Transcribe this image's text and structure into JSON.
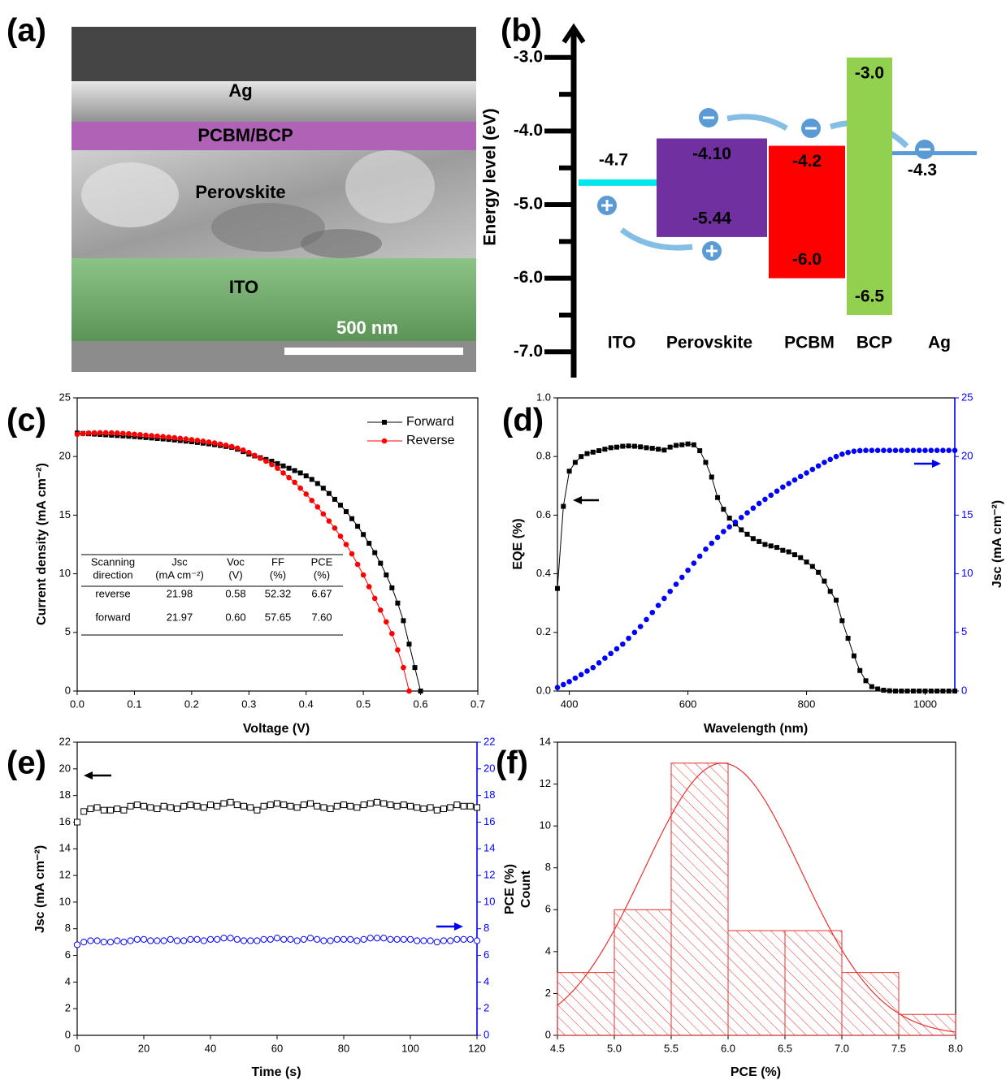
{
  "panel_labels": [
    "(a)",
    "(b)",
    "(c)",
    "(d)",
    "(e)",
    "(f)"
  ],
  "sem": {
    "layers": [
      "Ag",
      "PCBM/BCP",
      "Perovskite",
      "ITO"
    ],
    "scale_bar": "500 nm"
  },
  "chart_data": [
    {
      "type": "energy",
      "ylabel": "Energy level (eV)",
      "ylim": [
        -7.35,
        -2.55
      ],
      "yticks": [
        {
          "value": -3,
          "label": "-3.0"
        },
        {
          "value": -4,
          "label": "-4.0"
        },
        {
          "value": -5,
          "label": "-5.0"
        },
        {
          "value": -6,
          "label": "-6.0"
        },
        {
          "value": -7,
          "label": "-7.0"
        }
      ],
      "minor_yticks": [
        -3.5,
        -4.5,
        -5.5,
        -6.5
      ],
      "bands": [
        {
          "name": "ITO",
          "color": "#00e5ee",
          "values": [
            -4.7
          ],
          "value_labels": [
            "-4.7"
          ]
        },
        {
          "name": "Perovskite",
          "color": "#7030a0",
          "values": [
            -4.1,
            -5.44
          ],
          "value_labels": [
            "-4.10",
            "-5.44"
          ]
        },
        {
          "name": "PCBM",
          "color": "#ff0000",
          "values": [
            -4.2,
            -6.0
          ],
          "value_labels": [
            "-4.2",
            "-6.0"
          ]
        },
        {
          "name": "BCP",
          "color": "#92d050",
          "values": [
            -3.0,
            -6.5
          ],
          "value_labels": [
            "-3.0",
            "-6.5"
          ]
        },
        {
          "name": "Ag",
          "color": "#5b9bd5",
          "values": [
            -4.3
          ],
          "value_labels": [
            "-4.3"
          ]
        }
      ]
    },
    {
      "type": "line",
      "xlabel": "Voltage (V)",
      "ylabel": "Current density (mA cm⁻²)",
      "xlim": [
        0,
        0.7
      ],
      "xticks": [
        {
          "value": 0,
          "label": "0.0"
        },
        0.1,
        0.2,
        0.3,
        0.4,
        0.5,
        0.6,
        0.7
      ],
      "ylim": [
        0,
        25
      ],
      "yticks": [
        0,
        5,
        10,
        15,
        20,
        25
      ],
      "legend": "upper right",
      "series": [
        {
          "name": "Forward",
          "color": "#000000",
          "marker": "square",
          "x": [
            0,
            0.01,
            0.02,
            0.03,
            0.04,
            0.05,
            0.06,
            0.07,
            0.08,
            0.09,
            0.1,
            0.11,
            0.12,
            0.13,
            0.14,
            0.15,
            0.16,
            0.17,
            0.18,
            0.19,
            0.2,
            0.21,
            0.22,
            0.23,
            0.24,
            0.25,
            0.26,
            0.27,
            0.28,
            0.29,
            0.3,
            0.31,
            0.32,
            0.33,
            0.34,
            0.35,
            0.36,
            0.37,
            0.38,
            0.39,
            0.4,
            0.41,
            0.42,
            0.43,
            0.44,
            0.45,
            0.46,
            0.47,
            0.48,
            0.49,
            0.5,
            0.51,
            0.52,
            0.53,
            0.54,
            0.55,
            0.56,
            0.57,
            0.58,
            0.59,
            0.6
          ],
          "values": [
            22.0,
            21.97,
            21.94,
            21.91,
            21.88,
            21.85,
            21.82,
            21.79,
            21.76,
            21.73,
            21.7,
            21.66,
            21.62,
            21.58,
            21.54,
            21.5,
            21.46,
            21.41,
            21.36,
            21.31,
            21.26,
            21.2,
            21.14,
            21.08,
            21.01,
            20.94,
            20.86,
            20.78,
            20.62,
            20.42,
            20.2,
            20.05,
            19.9,
            19.75,
            19.6,
            19.4,
            19.2,
            19.0,
            18.8,
            18.6,
            18.35,
            18.05,
            17.7,
            17.3,
            16.85,
            16.35,
            15.85,
            15.3,
            14.7,
            14.05,
            13.35,
            12.6,
            11.8,
            10.9,
            9.9,
            8.8,
            7.5,
            6.0,
            4.0,
            2.0,
            0.0
          ]
        },
        {
          "name": "Reverse",
          "color": "#ff0000",
          "marker": "circle",
          "x": [
            0,
            0.01,
            0.02,
            0.03,
            0.04,
            0.05,
            0.06,
            0.07,
            0.08,
            0.09,
            0.1,
            0.11,
            0.12,
            0.13,
            0.14,
            0.15,
            0.16,
            0.17,
            0.18,
            0.19,
            0.2,
            0.21,
            0.22,
            0.23,
            0.24,
            0.25,
            0.26,
            0.27,
            0.28,
            0.29,
            0.3,
            0.31,
            0.32,
            0.33,
            0.34,
            0.35,
            0.36,
            0.37,
            0.38,
            0.39,
            0.4,
            0.41,
            0.42,
            0.43,
            0.44,
            0.45,
            0.46,
            0.47,
            0.48,
            0.49,
            0.5,
            0.51,
            0.52,
            0.53,
            0.54,
            0.55,
            0.56,
            0.57,
            0.58
          ],
          "values": [
            21.9,
            21.95,
            22.0,
            22.02,
            22.03,
            22.03,
            22.02,
            22.0,
            21.97,
            21.94,
            21.9,
            21.86,
            21.82,
            21.78,
            21.74,
            21.7,
            21.65,
            21.6,
            21.55,
            21.5,
            21.44,
            21.38,
            21.31,
            21.23,
            21.15,
            21.06,
            20.96,
            20.85,
            20.72,
            20.55,
            20.35,
            20.1,
            19.85,
            19.6,
            19.32,
            19.0,
            18.6,
            18.2,
            17.8,
            17.3,
            16.8,
            16.25,
            15.7,
            15.1,
            14.5,
            13.9,
            13.2,
            12.5,
            11.7,
            10.8,
            9.9,
            8.9,
            7.9,
            6.9,
            5.9,
            4.9,
            3.5,
            2.0,
            0.0
          ]
        }
      ],
      "table": {
        "header": [
          [
            "Scanning",
            "direction"
          ],
          [
            "Jsc",
            "(mA cm⁻²)"
          ],
          [
            "Voc",
            "(V)"
          ],
          [
            "FF",
            "(%)"
          ],
          [
            "PCE",
            "(%)"
          ]
        ],
        "rows": [
          [
            "reverse",
            "21.98",
            "0.58",
            "52.32",
            "6.67"
          ],
          [
            "forward",
            "21.97",
            "0.60",
            "57.65",
            "7.60"
          ]
        ]
      }
    },
    {
      "type": "dual",
      "xlabel": "Wavelength (nm)",
      "ylabel": "EQE (%)",
      "y2label": "Jsc (mA cm⁻²)",
      "xlim": [
        380,
        1050
      ],
      "xticks": [
        400,
        600,
        800,
        1000
      ],
      "ylim": [
        0,
        1
      ],
      "yticks": [
        {
          "value": 0,
          "label": "0.0"
        },
        0.2,
        0.4,
        0.6,
        0.8,
        {
          "value": 1,
          "label": "1.0"
        }
      ],
      "y2lim": [
        0,
        25
      ],
      "y2ticks": [
        0,
        5,
        10,
        15,
        20,
        25
      ],
      "x": [
        380,
        390,
        400,
        410,
        420,
        430,
        440,
        450,
        460,
        470,
        480,
        490,
        500,
        510,
        520,
        530,
        540,
        550,
        560,
        570,
        580,
        590,
        600,
        610,
        620,
        630,
        640,
        650,
        660,
        670,
        680,
        690,
        700,
        710,
        720,
        730,
        740,
        750,
        760,
        770,
        780,
        790,
        800,
        810,
        820,
        830,
        840,
        850,
        860,
        870,
        880,
        890,
        900,
        910,
        920,
        930,
        940,
        950,
        960,
        970,
        980,
        990,
        1000,
        1010,
        1020,
        1030,
        1040,
        1050
      ],
      "series": [
        {
          "color": "#000000",
          "marker": "square",
          "connected": true,
          "values": [
            0.35,
            0.63,
            0.75,
            0.78,
            0.8,
            0.81,
            0.815,
            0.82,
            0.825,
            0.83,
            0.832,
            0.835,
            0.836,
            0.835,
            0.833,
            0.83,
            0.828,
            0.825,
            0.822,
            0.832,
            0.838,
            0.84,
            0.843,
            0.84,
            0.82,
            0.78,
            0.73,
            0.66,
            0.62,
            0.59,
            0.57,
            0.55,
            0.535,
            0.52,
            0.51,
            0.5,
            0.495,
            0.49,
            0.48,
            0.475,
            0.465,
            0.455,
            0.44,
            0.425,
            0.405,
            0.375,
            0.34,
            0.31,
            0.24,
            0.18,
            0.12,
            0.07,
            0.035,
            0.015,
            0.007,
            0.003,
            0.001,
            0,
            0,
            0,
            0,
            0,
            0,
            0,
            0,
            0,
            0,
            0
          ]
        },
        {
          "color": "#0000ff",
          "marker": "circle",
          "axis": "y2",
          "values": [
            0.3,
            0.55,
            0.8,
            1.1,
            1.4,
            1.7,
            2.0,
            2.4,
            2.8,
            3.2,
            3.6,
            4.0,
            4.5,
            5.0,
            5.5,
            6.1,
            6.7,
            7.3,
            7.9,
            8.5,
            9.1,
            9.7,
            10.3,
            10.9,
            11.5,
            12.1,
            12.6,
            13.1,
            13.6,
            14.0,
            14.4,
            14.8,
            15.2,
            15.6,
            16.0,
            16.35,
            16.7,
            17.05,
            17.4,
            17.7,
            18.0,
            18.3,
            18.6,
            18.9,
            19.2,
            19.5,
            19.75,
            20.0,
            20.2,
            20.35,
            20.45,
            20.5,
            20.52,
            20.52,
            20.52,
            20.52,
            20.52,
            20.52,
            20.52,
            20.52,
            20.52,
            20.52,
            20.52,
            20.52,
            20.52,
            20.52,
            20.52,
            20.52
          ]
        }
      ]
    },
    {
      "type": "dual",
      "xlabel": "Time (s)",
      "ylabel": "Jsc (mA cm⁻²)",
      "y2label": "PCE (%)",
      "xlim": [
        0,
        120
      ],
      "xticks": [
        0,
        20,
        40,
        60,
        80,
        100,
        120
      ],
      "ylim": [
        0,
        22
      ],
      "yticks": [
        0,
        2,
        4,
        6,
        8,
        10,
        12,
        14,
        16,
        18,
        20,
        22
      ],
      "y2lim": [
        0,
        22
      ],
      "y2ticks": [
        0,
        2,
        4,
        6,
        8,
        10,
        12,
        14,
        16,
        18,
        20,
        22
      ],
      "x": [
        0,
        2,
        4,
        6,
        8,
        10,
        12,
        14,
        16,
        18,
        20,
        22,
        24,
        26,
        28,
        30,
        32,
        34,
        36,
        38,
        40,
        42,
        44,
        46,
        48,
        50,
        52,
        54,
        56,
        58,
        60,
        62,
        64,
        66,
        68,
        70,
        72,
        74,
        76,
        78,
        80,
        82,
        84,
        86,
        88,
        90,
        92,
        94,
        96,
        98,
        100,
        102,
        104,
        106,
        108,
        110,
        112,
        114,
        116,
        118,
        120
      ],
      "series": [
        {
          "color": "#000000",
          "marker": "square-open",
          "values": [
            16.0,
            16.8,
            17.0,
            17.1,
            16.9,
            16.9,
            17.0,
            16.9,
            17.2,
            17.3,
            17.2,
            17.1,
            17.0,
            17.2,
            17.1,
            17.0,
            17.2,
            17.3,
            17.2,
            17.1,
            17.3,
            17.2,
            17.4,
            17.5,
            17.3,
            17.2,
            17.1,
            16.9,
            17.2,
            17.3,
            17.4,
            17.3,
            17.2,
            17.1,
            17.3,
            17.4,
            17.2,
            17.1,
            17.0,
            17.2,
            17.3,
            17.2,
            17.1,
            17.3,
            17.4,
            17.5,
            17.4,
            17.3,
            17.2,
            17.3,
            17.2,
            17.1,
            17.0,
            17.1,
            16.9,
            17.0,
            17.1,
            17.3,
            17.2,
            17.2,
            17.1
          ]
        },
        {
          "color": "#0000ff",
          "marker": "circle-open",
          "axis": "y2",
          "values": [
            6.8,
            7.0,
            7.1,
            7.1,
            7.0,
            7.0,
            7.1,
            7.0,
            7.1,
            7.2,
            7.2,
            7.1,
            7.1,
            7.1,
            7.2,
            7.1,
            7.1,
            7.2,
            7.2,
            7.1,
            7.2,
            7.2,
            7.3,
            7.3,
            7.2,
            7.1,
            7.1,
            7.1,
            7.2,
            7.2,
            7.3,
            7.2,
            7.2,
            7.1,
            7.2,
            7.3,
            7.2,
            7.1,
            7.1,
            7.2,
            7.2,
            7.2,
            7.1,
            7.2,
            7.3,
            7.3,
            7.3,
            7.2,
            7.2,
            7.2,
            7.2,
            7.1,
            7.1,
            7.1,
            7.0,
            7.1,
            7.1,
            7.2,
            7.2,
            7.2,
            7.1
          ]
        }
      ]
    },
    {
      "type": "histogram",
      "xlabel": "PCE (%)",
      "ylabel": "Count",
      "color": "#e8302f",
      "bins": [
        4.5,
        5,
        5.5,
        6,
        6.5,
        7,
        7.5,
        8
      ],
      "values": [
        3,
        6,
        13,
        5,
        5,
        3,
        1
      ],
      "xlim": [
        4.5,
        8
      ],
      "xticks": [
        4.5,
        {
          "value": 5,
          "label": "5.0"
        },
        5.5,
        {
          "value": 6,
          "label": "6.0"
        },
        6.5,
        {
          "value": 7,
          "label": "7.0"
        },
        7.5,
        {
          "value": 8,
          "label": "8.0"
        }
      ],
      "ylim": [
        0,
        14
      ],
      "yticks": [
        0,
        2,
        4,
        6,
        8,
        10,
        12,
        14
      ],
      "fit": {
        "peak": 13,
        "mean": 5.95,
        "sd": 0.69
      }
    }
  ]
}
